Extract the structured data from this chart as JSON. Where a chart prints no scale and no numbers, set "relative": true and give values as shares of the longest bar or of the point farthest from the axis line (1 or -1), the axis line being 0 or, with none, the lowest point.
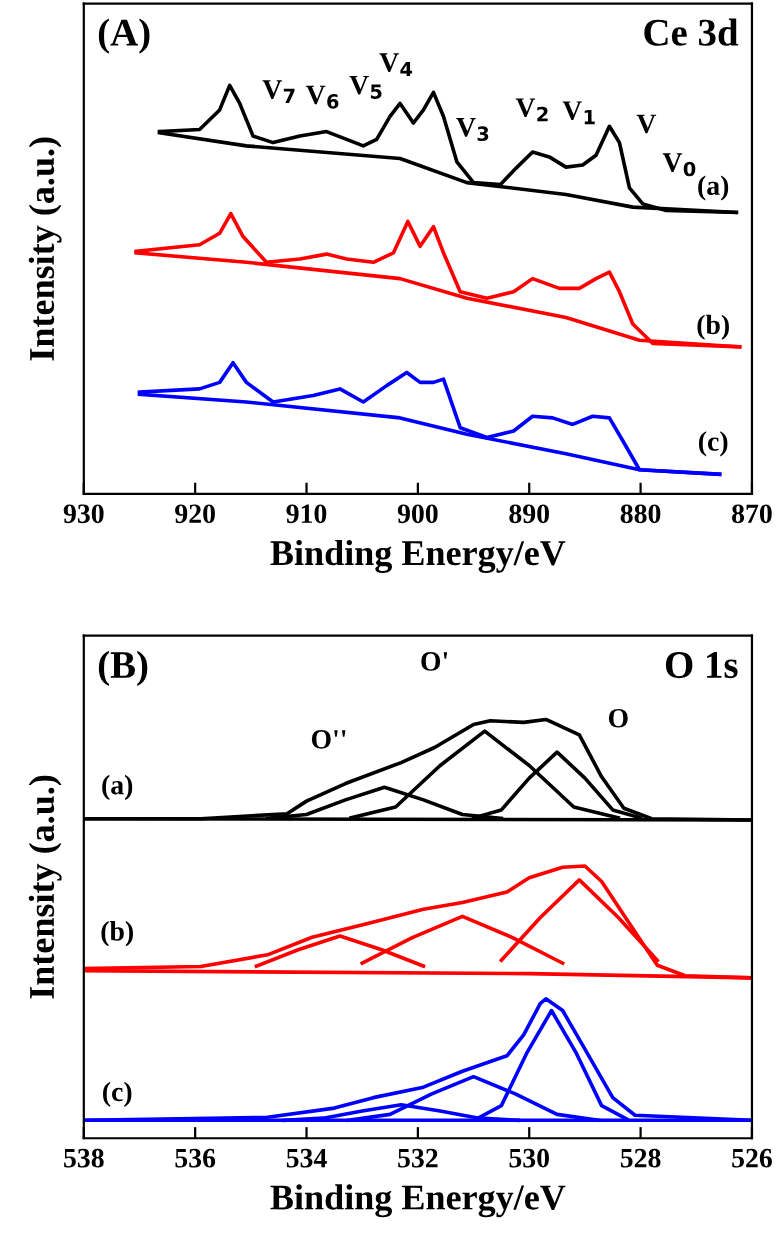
{
  "chart_data": [
    {
      "type": "line",
      "relative": true,
      "xlabel": "Binding Energy/eV",
      "ylabel": "Intensity (a.u.)",
      "xlim": [
        930,
        870
      ],
      "xticks": [
        930,
        920,
        910,
        900,
        890,
        880,
        870
      ],
      "tick_labels": "x",
      "annotations": [
        "(A)",
        "Ce 3d",
        "V$_{7}$",
        "V$_{6}$",
        "V$_{5}$",
        "V$_{4}$",
        "V$_{3}$",
        "V$_{2}$",
        "V$_{1}$",
        "V",
        "V$_{0}$",
        "(a)",
        "(b)",
        "(c)"
      ],
      "series": [
        {
          "color": "#000000",
          "x": [
            923.2,
            919.6,
            917.8,
            916.9,
            916.0,
            914.8,
            913.0,
            910.6,
            908.2,
            906.4,
            904.9,
            903.7,
            902.5,
            901.6,
            900.4,
            899.5,
            898.6,
            897.7,
            896.5,
            895.0,
            892.6,
            891.2,
            889.7,
            888.2,
            886.7,
            885.2,
            884.0,
            882.8,
            881.9,
            881.0,
            879.8,
            877.7,
            871.4
          ],
          "values": [
            0.887,
            0.892,
            0.94,
            1.0,
            0.956,
            0.876,
            0.86,
            0.876,
            0.887,
            0.868,
            0.852,
            0.868,
            0.924,
            0.956,
            0.908,
            0.94,
            0.983,
            0.924,
            0.813,
            0.762,
            0.757,
            0.797,
            0.837,
            0.825,
            0.8,
            0.805,
            0.829,
            0.9,
            0.86,
            0.749,
            0.71,
            0.694,
            0.689
          ]
        },
        {
          "color": "#000000",
          "x": [
            923.2,
            915.4,
            901.6,
            895.6,
            886.7,
            880.7,
            871.4
          ],
          "values": [
            0.884,
            0.852,
            0.821,
            0.762,
            0.733,
            0.702,
            0.689
          ]
        },
        {
          "color": "#ff0000",
          "x": [
            925.3,
            919.6,
            917.8,
            916.8,
            915.7,
            913.6,
            910.6,
            908.2,
            906.4,
            904.0,
            902.2,
            900.9,
            899.8,
            898.6,
            897.7,
            896.2,
            893.8,
            891.4,
            889.7,
            887.3,
            885.5,
            884.0,
            882.8,
            881.9,
            880.7,
            878.9,
            871.1
          ],
          "values": [
            0.594,
            0.61,
            0.638,
            0.686,
            0.63,
            0.567,
            0.575,
            0.587,
            0.575,
            0.567,
            0.59,
            0.667,
            0.606,
            0.654,
            0.59,
            0.495,
            0.479,
            0.495,
            0.527,
            0.503,
            0.503,
            0.527,
            0.543,
            0.495,
            0.416,
            0.368,
            0.36
          ]
        },
        {
          "color": "#ff0000",
          "x": [
            925.3,
            915.4,
            901.6,
            895.6,
            886.7,
            880.1,
            871.1
          ],
          "values": [
            0.59,
            0.567,
            0.527,
            0.479,
            0.432,
            0.376,
            0.36
          ]
        },
        {
          "color": "#0000ff",
          "x": [
            925.0,
            919.6,
            917.8,
            916.6,
            915.4,
            913.0,
            909.4,
            907.0,
            904.9,
            902.8,
            901.0,
            899.8,
            898.6,
            897.7,
            896.2,
            893.8,
            891.4,
            889.7,
            887.9,
            886.1,
            884.3,
            882.8,
            881.6,
            880.1,
            872.9
          ],
          "values": [
            0.249,
            0.257,
            0.273,
            0.321,
            0.273,
            0.225,
            0.241,
            0.257,
            0.225,
            0.265,
            0.297,
            0.273,
            0.273,
            0.281,
            0.162,
            0.138,
            0.154,
            0.19,
            0.186,
            0.17,
            0.19,
            0.186,
            0.13,
            0.059,
            0.048
          ]
        },
        {
          "color": "#0000ff",
          "x": [
            925.0,
            915.4,
            901.6,
            895.6,
            886.7,
            880.1,
            872.9
          ],
          "values": [
            0.244,
            0.225,
            0.186,
            0.146,
            0.098,
            0.059,
            0.048
          ]
        }
      ]
    },
    {
      "type": "line",
      "relative": true,
      "xlabel": "Binding Energy/eV",
      "ylabel": "Intensity (a.u.)",
      "xlim": [
        538,
        526
      ],
      "xticks": [
        538,
        536,
        534,
        532,
        530,
        528,
        526
      ],
      "tick_labels": "x",
      "annotations": [
        "(B)",
        "O 1s",
        "O''",
        "O'",
        "O",
        "(a)",
        "(b)",
        "(c)"
      ],
      "series": [
        {
          "color": "#000000",
          "x": [
            538,
            535.9,
            534.35,
            534.0,
            533.3,
            532.3,
            531.7,
            531.0,
            530.7,
            530.1,
            529.7,
            529.1,
            528.7,
            528.3,
            527.8,
            526
          ],
          "values": [
            0.763,
            0.763,
            0.775,
            0.805,
            0.847,
            0.897,
            0.933,
            0.988,
            0.997,
            0.993,
            1.0,
            0.963,
            0.863,
            0.788,
            0.763,
            0.76
          ]
        },
        {
          "color": "#000000",
          "x": [
            538,
            526
          ],
          "values": [
            0.763,
            0.76
          ]
        },
        {
          "color": "#000000",
          "x": [
            534.7,
            534.0,
            533.3,
            532.6,
            531.9,
            531.2,
            530.5
          ],
          "values": [
            0.764,
            0.773,
            0.808,
            0.838,
            0.808,
            0.773,
            0.764
          ]
        },
        {
          "color": "#000000",
          "x": [
            533.2,
            532.4,
            531.6,
            530.8,
            530.0,
            529.2,
            528.4
          ],
          "values": [
            0.765,
            0.791,
            0.89,
            0.972,
            0.89,
            0.791,
            0.765
          ]
        },
        {
          "color": "#000000",
          "x": [
            531.0,
            530.5,
            530.0,
            529.5,
            529.0,
            528.5,
            528.0
          ],
          "values": [
            0.765,
            0.784,
            0.86,
            0.922,
            0.86,
            0.784,
            0.765
          ]
        },
        {
          "color": "#ff0000",
          "x": [
            538,
            535.9,
            534.7,
            533.9,
            532.9,
            531.9,
            531.2,
            530.4,
            530.0,
            529.4,
            529.0,
            528.7,
            528.2,
            527.7,
            527.2,
            526
          ],
          "values": [
            0.405,
            0.41,
            0.438,
            0.48,
            0.513,
            0.547,
            0.563,
            0.588,
            0.622,
            0.647,
            0.65,
            0.613,
            0.513,
            0.413,
            0.388,
            0.383
          ]
        },
        {
          "color": "#ff0000",
          "x": [
            538,
            530,
            526
          ],
          "values": [
            0.4,
            0.393,
            0.383
          ]
        },
        {
          "color": "#ff0000",
          "x": [
            534.9,
            534.15,
            533.4,
            532.65,
            531.9
          ],
          "values": [
            0.411,
            0.45,
            0.483,
            0.45,
            0.411
          ]
        },
        {
          "color": "#ff0000",
          "x": [
            533.0,
            532.1,
            531.2,
            530.3,
            529.4
          ],
          "values": [
            0.418,
            0.479,
            0.53,
            0.479,
            0.418
          ]
        },
        {
          "color": "#ff0000",
          "x": [
            530.5,
            529.8,
            529.1,
            528.4,
            527.7
          ],
          "values": [
            0.425,
            0.527,
            0.617,
            0.527,
            0.425
          ]
        },
        {
          "color": "#0000ff",
          "x": [
            538,
            534.7,
            533.5,
            532.8,
            531.9,
            531.2,
            530.4,
            530.1,
            529.8,
            529.7,
            529.4,
            529.0,
            528.5,
            528.1,
            526
          ],
          "values": [
            0.043,
            0.05,
            0.072,
            0.097,
            0.122,
            0.16,
            0.197,
            0.247,
            0.322,
            0.333,
            0.305,
            0.213,
            0.097,
            0.055,
            0.043
          ]
        },
        {
          "color": "#0000ff",
          "x": [
            538,
            526
          ],
          "values": [
            0.043,
            0.043
          ]
        },
        {
          "color": "#0000ff",
          "x": [
            534.4,
            533.7,
            533.0,
            532.3,
            531.6,
            530.9,
            530.2
          ],
          "values": [
            0.043,
            0.048,
            0.065,
            0.08,
            0.065,
            0.048,
            0.043
          ]
        },
        {
          "color": "#0000ff",
          "x": [
            533.25,
            532.5,
            531.75,
            531.0,
            530.25,
            529.5,
            528.75
          ],
          "values": [
            0.043,
            0.057,
            0.106,
            0.147,
            0.106,
            0.057,
            0.043
          ]
        },
        {
          "color": "#0000ff",
          "x": [
            530.95,
            530.5,
            530.05,
            529.6,
            529.15,
            528.7,
            528.25
          ],
          "values": [
            0.046,
            0.078,
            0.202,
            0.305,
            0.202,
            0.078,
            0.046
          ]
        }
      ]
    }
  ]
}
